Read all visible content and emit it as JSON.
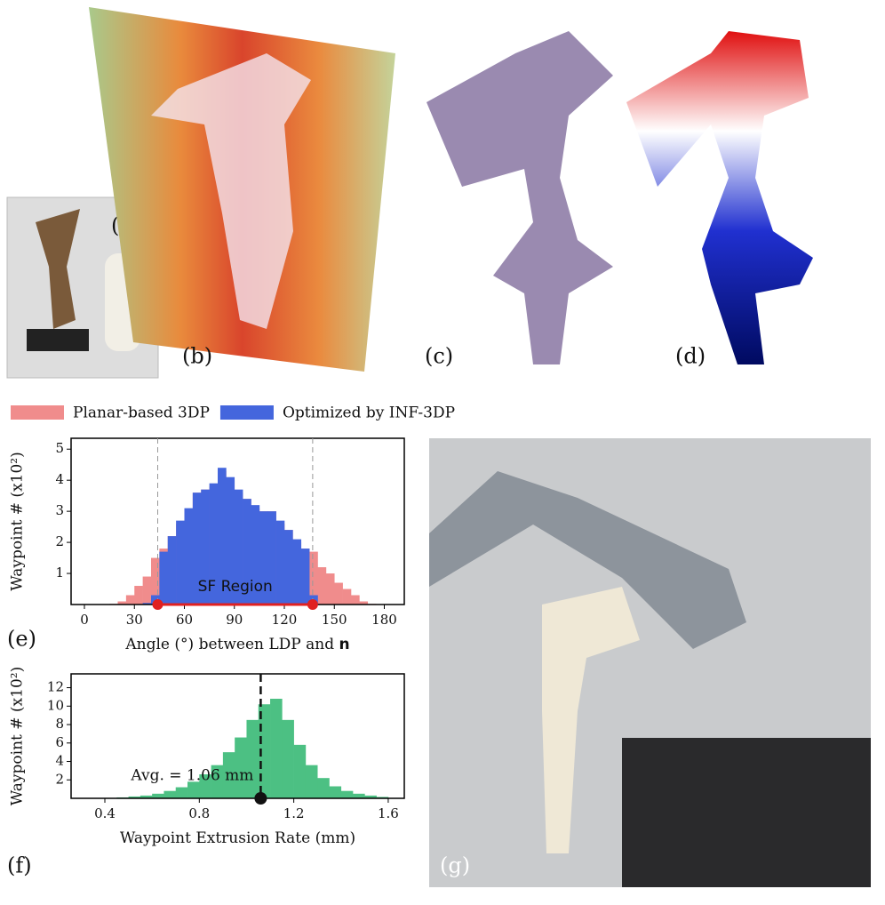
{
  "panels": {
    "a": "(a)",
    "b": "(b)",
    "c": "(c)",
    "d": "(d)",
    "e": "(e)",
    "f": "(f)",
    "g": "(g)"
  },
  "chart_data": [
    {
      "type": "histogram",
      "x_label": "Angle (°) between LDP and ",
      "x_label_bold": "n",
      "y_label": "Waypoint # (x10²)",
      "bins": [
        0,
        5,
        10,
        15,
        20,
        25,
        30,
        35,
        40,
        45,
        50,
        55,
        60,
        65,
        70,
        75,
        80,
        85,
        90,
        95,
        100,
        105,
        110,
        115,
        120,
        125,
        130,
        135,
        140,
        145,
        150,
        155,
        160,
        165,
        170,
        175,
        180
      ],
      "series": [
        {
          "name": "Planar-based 3DP",
          "color": "#f08c8c",
          "values": [
            0,
            0,
            0,
            0.02,
            0.1,
            0.3,
            0.6,
            0.9,
            1.5,
            1.8,
            2.2,
            2.6,
            3.0,
            3.6,
            3.7,
            3.8,
            4.3,
            4.0,
            3.6,
            3.4,
            3.1,
            3.0,
            3.0,
            2.6,
            2.4,
            2.0,
            1.8,
            1.7,
            1.2,
            1.0,
            0.7,
            0.5,
            0.3,
            0.1,
            0.02,
            0
          ]
        },
        {
          "name": "Optimized by INF-3DP",
          "color": "#4466dd",
          "values": [
            0,
            0,
            0,
            0,
            0,
            0,
            0,
            0.05,
            0.3,
            1.7,
            2.2,
            2.7,
            3.1,
            3.6,
            3.7,
            3.9,
            4.4,
            4.1,
            3.7,
            3.4,
            3.2,
            3.0,
            3.0,
            2.7,
            2.4,
            2.1,
            1.8,
            0.3,
            0,
            0,
            0,
            0,
            0,
            0,
            0,
            0
          ]
        }
      ],
      "sf_region": {
        "label": "SF Region",
        "range": [
          44,
          137
        ],
        "color": "#e02020"
      },
      "xlim": [
        -8,
        192
      ],
      "xticks": [
        0,
        30,
        60,
        90,
        120,
        150,
        180
      ],
      "ylim": [
        0,
        5.35
      ],
      "yticks": [
        1,
        2,
        3,
        4,
        5
      ]
    },
    {
      "type": "histogram",
      "x_label": "Waypoint Extrusion Rate (mm)",
      "y_label": "Waypoint # (x10²)",
      "bins": [
        0.3,
        0.35,
        0.4,
        0.45,
        0.5,
        0.55,
        0.6,
        0.65,
        0.7,
        0.75,
        0.8,
        0.85,
        0.9,
        0.95,
        1.0,
        1.05,
        1.1,
        1.15,
        1.2,
        1.25,
        1.3,
        1.35,
        1.4,
        1.45,
        1.5,
        1.55,
        1.6,
        1.65,
        1.7
      ],
      "series": [
        {
          "name": null,
          "color": "#4cc083",
          "values": [
            0,
            0.02,
            0.05,
            0.1,
            0.2,
            0.3,
            0.5,
            0.8,
            1.2,
            1.8,
            2.6,
            3.6,
            5.0,
            6.6,
            8.5,
            10.2,
            10.8,
            8.5,
            5.8,
            3.6,
            2.2,
            1.3,
            0.8,
            0.5,
            0.3,
            0.15,
            0.05,
            0
          ]
        }
      ],
      "average": {
        "value": 1.06,
        "label": "Avg. = 1.06 mm"
      },
      "xlim": [
        0.257,
        1.668
      ],
      "xticks": [
        0.4,
        0.8,
        1.2,
        1.6
      ],
      "ylim": [
        0,
        13.5
      ],
      "yticks": [
        2,
        4,
        6,
        8,
        10,
        12
      ]
    }
  ]
}
